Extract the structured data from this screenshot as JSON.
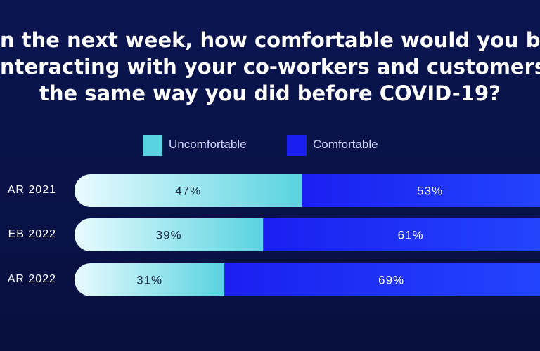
{
  "chart_data": {
    "type": "bar",
    "stacked": true,
    "orientation": "horizontal",
    "title": "in the next week, how comfortable would you be interacting with your co-workers and customers the same way you did before COVID-19?",
    "title_lines": [
      "n the next week, how comfortable would you be",
      "nteracting with your co-workers and customers",
      "the same way you did before COVID-19?"
    ],
    "categories": [
      "AR 2021",
      "EB 2022",
      "AR 2022"
    ],
    "series": [
      {
        "name": "Uncomfortable",
        "values": [
          47,
          39,
          31
        ],
        "labels": [
          "47%",
          "39%",
          "31%"
        ],
        "color": "#59d3e0"
      },
      {
        "name": "Comfortable",
        "values": [
          53,
          61,
          69
        ],
        "labels": [
          "53%",
          "61%",
          "69%"
        ],
        "color": "#1a1ff0"
      }
    ],
    "xlim": [
      0,
      100
    ],
    "legend": "top-center",
    "grid": false
  },
  "colors": {
    "background": "#0a1448",
    "uncomfortable": "#59d3e0",
    "comfortable": "#1a1ff0",
    "text": "#ffffff"
  }
}
